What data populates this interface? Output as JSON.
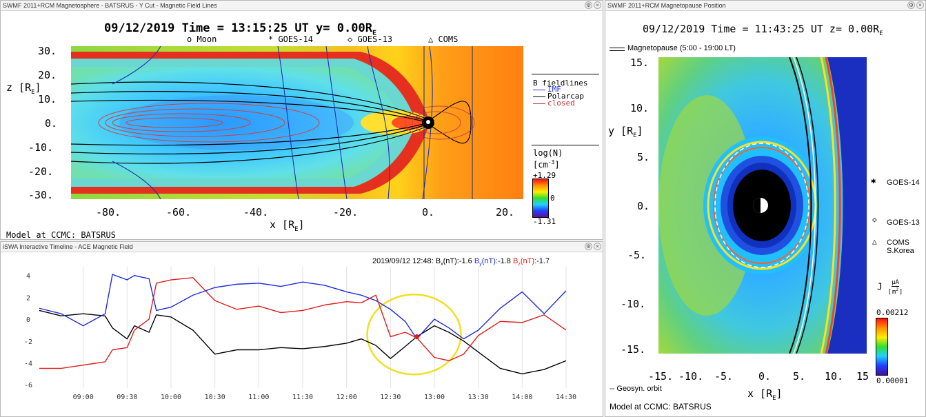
{
  "mag_panel": {
    "title": "SWMF 2011+RCM Magnetosphere - BATSRUS - Y Cut - Magnetic Field Lines",
    "header": "09/12/2019 Time = 13:15:25 UT y= 0.00R",
    "header_sub": "E",
    "legend_moon": "o Moon",
    "legend_goes14": "* GOES-14",
    "legend_goes13": "◇ GOES-13",
    "legend_coms": "△ COMS",
    "ylabel": "z [R",
    "ylabel_sub": "E",
    "ylabel_end": "]",
    "xlabel": "x [R",
    "xlabel_sub": "E",
    "xlabel_end": "]",
    "yticks": [
      "30.",
      "20.",
      "10.",
      "0.",
      "-10.",
      "-20.",
      "-30."
    ],
    "xticks": [
      "-80.",
      "-60.",
      "-40.",
      "-20.",
      "0.",
      "20."
    ],
    "fieldlines_title": "B fieldlines",
    "fl_imf": "IMF",
    "fl_polarcap": "Polarcap",
    "fl_closed": "closed",
    "cb_title": "log(N)",
    "cb_unit": "[cm",
    "cb_unit_sup": "-3",
    "cb_unit_end": "]",
    "cb_max": "+1.29",
    "cb_mid": "0",
    "cb_min": "-1.31",
    "footer": "Model at CCMC: BATSRUS",
    "colors": {
      "imf": "#2233cc",
      "polarcap": "#000000",
      "closed": "#cc3333"
    }
  },
  "timeline_panel": {
    "title": "iSWA Interactive Timeline - ACE Magnetic Field",
    "readout_time": "2019/09/12 12:48:",
    "bx_label": "B",
    "bx_sub": "x",
    "bx_unit": "(nT):",
    "bx_value": "-1.6",
    "by_label": "B",
    "by_sub": "y",
    "by_unit": "(nT):",
    "by_value": "-1.8",
    "bz_label": "B",
    "bz_sub": "z",
    "bz_unit": "(nT):",
    "bz_value": "-1.7",
    "colors": {
      "bx": "#000000",
      "by": "#1c2bd6",
      "bz": "#e01b1b",
      "highlight": "#f0e020"
    }
  },
  "pause_panel": {
    "title": "SWMF 2011+RCM Magnetopause Position",
    "header": "09/12/2019 Time = 11:43:25 UT z= 0.00R",
    "header_sub": "E",
    "mp_legend": "Magnetopause (5:00 - 19:00 LT)",
    "ylabel": "y [R",
    "ylabel_sub": "E",
    "ylabel_end": "]",
    "xlabel": "x [R",
    "xlabel_sub": "E",
    "xlabel_end": "]",
    "yticks": [
      "15.",
      "10.",
      "5.",
      "0.",
      "-5.",
      "-10.",
      "-15."
    ],
    "xticks": [
      "-15.",
      "-10.",
      "-5.",
      "0.",
      "5.",
      "10.",
      "15"
    ],
    "goes14": "GOES-14",
    "goes13": "GOES-13",
    "coms": "COMS",
    "coms2": "S.Korea",
    "cb_label": "J",
    "cb_unit_num": "μA",
    "cb_unit_den": "m",
    "cb_unit_den_sup": "2",
    "cb_max": "0.00212",
    "cb_min": "0.00001",
    "geosyn": "-- Geosyn. orbit",
    "footer": "Model at CCMC: BATSRUS"
  },
  "chart_data": {
    "type": "line",
    "title": "",
    "xlabel": "",
    "ylabel": "",
    "x": [
      "08:30",
      "08:45",
      "09:00",
      "09:15",
      "09:20",
      "09:30",
      "09:35",
      "09:45",
      "09:50",
      "10:00",
      "10:15",
      "10:30",
      "10:45",
      "11:00",
      "11:15",
      "11:30",
      "11:45",
      "12:00",
      "12:10",
      "12:20",
      "12:30",
      "12:40",
      "12:48",
      "13:00",
      "13:10",
      "13:20",
      "13:30",
      "13:45",
      "14:00",
      "14:15",
      "14:30"
    ],
    "x_ticks": [
      "09:00",
      "09:30",
      "10:00",
      "10:30",
      "11:00",
      "11:30",
      "12:00",
      "12:30",
      "13:00",
      "13:30",
      "14:00",
      "14:30"
    ],
    "ylim": [
      -6.3,
      4.8
    ],
    "y_ticks": [
      4,
      2,
      0,
      -2,
      -4,
      -6
    ],
    "series": [
      {
        "name": "Bx",
        "values": [
          0.8,
          0.3,
          0.5,
          0.3,
          -0.8,
          -1.8,
          -0.6,
          -1.2,
          0.4,
          0.2,
          -1.0,
          -3.2,
          -2.8,
          -2.8,
          -2.6,
          -2.7,
          -2.5,
          -2.2,
          -1.8,
          -2.4,
          -3.6,
          -2.5,
          -1.6,
          -0.6,
          -1.2,
          -2.0,
          -3.0,
          -4.5,
          -5.0,
          -4.6,
          -3.8
        ]
      },
      {
        "name": "By",
        "values": [
          1.0,
          0.5,
          -0.6,
          0.5,
          4.1,
          3.6,
          4.0,
          3.7,
          0.8,
          1.1,
          2.2,
          2.9,
          3.2,
          3.3,
          3.0,
          3.4,
          3.1,
          2.5,
          2.2,
          1.7,
          0.9,
          -0.2,
          -1.8,
          0.0,
          -0.8,
          -1.8,
          -1.0,
          1.0,
          2.5,
          0.5,
          2.6
        ]
      },
      {
        "name": "Bz",
        "values": [
          -4.5,
          -4.5,
          -4.2,
          -3.9,
          -2.8,
          -2.6,
          -1.0,
          0.0,
          3.3,
          3.6,
          3.8,
          1.7,
          0.9,
          1.2,
          0.6,
          0.8,
          1.3,
          1.6,
          1.5,
          2.2,
          -1.6,
          -1.2,
          -1.7,
          -3.5,
          -3.8,
          -3.2,
          -1.5,
          -0.2,
          -0.3,
          0.4,
          -1.0
        ]
      }
    ]
  }
}
